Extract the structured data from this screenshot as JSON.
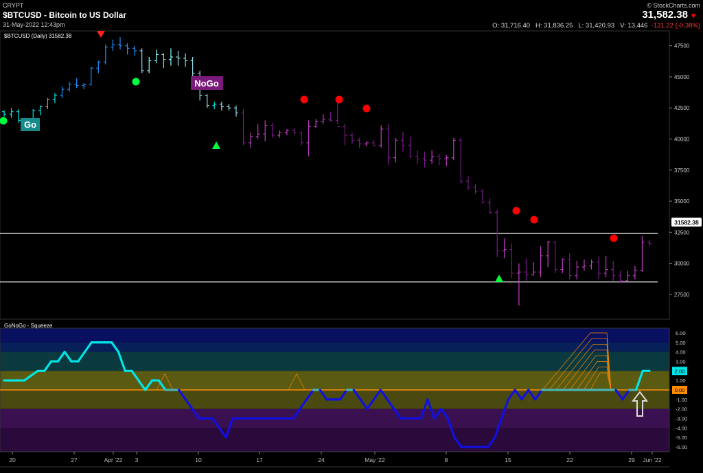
{
  "header": {
    "source": "CRYPT",
    "symbol_title": "$BTCUSD - Bitcoin to US Dollar",
    "datetime": "31-May-2022 12:43pm",
    "watermark": "© StockCharts.com",
    "last_price": "31,582.38",
    "ohlc": {
      "open": "O: 31,716.40",
      "high": "H: 31,836.25",
      "low": "L: 31,420.93",
      "volume": "V: 13,446",
      "change": "-121.22 (-0.38%)"
    }
  },
  "price_panel": {
    "legend": "$BTCUSD (Daily) 31582.38",
    "price_tag": "31582.38",
    "go_label": "Go",
    "nogo_label": "NoGo"
  },
  "osc_panel": {
    "legend": "GoNoGo - Squeeze",
    "value_tag": "2.00",
    "zero_tag": "0.00"
  },
  "colors": {
    "strong_go": "#1e90ff",
    "go": "#00e5e5",
    "nogo": "#c040c0",
    "strong_nogo": "#7a1a8a",
    "hline": "#e0e0e0",
    "red_dot": "#ff0000",
    "green": "#00ff3c"
  },
  "chart_data": [
    {
      "type": "ohlc-bar",
      "title": "$BTCUSD (Daily) 31582.38",
      "y_ticks": [
        "47500",
        "45000",
        "42500",
        "40000",
        "37500",
        "35000",
        "32500",
        "30000",
        "27500"
      ],
      "ylim": [
        25500,
        48700
      ],
      "x_ticks": [
        "20",
        "27",
        "Apr '22",
        "3",
        "10",
        "17",
        "24",
        "May '22",
        "8",
        "15",
        "22",
        "29",
        "Jun '22"
      ],
      "horizontal_lines": [
        32400,
        28500
      ],
      "series": [
        {
          "values": [
            [
              42200,
              42300,
              41800,
              42000
            ],
            [
              42000,
              42500,
              41700,
              42200
            ],
            [
              42200,
              42400,
              41300,
              41500
            ],
            [
              41500,
              41700,
              41000,
              41200
            ],
            [
              41200,
              42400,
              41100,
              42300
            ],
            [
              42300,
              42700,
              41900,
              42600
            ],
            [
              42600,
              43300,
              42400,
              43200
            ],
            [
              43200,
              43700,
              42900,
              43500
            ],
            [
              43500,
              44200,
              43300,
              44000
            ],
            [
              44000,
              44600,
              43800,
              44400
            ],
            [
              44400,
              44900,
              44100,
              44300
            ],
            [
              44300,
              44500,
              44000,
              44400
            ],
            [
              44400,
              45800,
              44300,
              45700
            ],
            [
              45700,
              46300,
              45300,
              46200
            ],
            [
              46200,
              47600,
              46000,
              47400
            ],
            [
              47400,
              48000,
              47100,
              47600
            ],
            [
              47600,
              48200,
              47200,
              47500
            ],
            [
              47500,
              47700,
              46800,
              47300
            ],
            [
              47300,
              47500,
              46700,
              47100
            ],
            [
              47100,
              47300,
              45300,
              45500
            ],
            [
              45500,
              46600,
              45300,
              46300
            ],
            [
              46300,
              47200,
              46100,
              46800
            ],
            [
              46800,
              46900,
              45700,
              46400
            ],
            [
              46400,
              47300,
              45900,
              46600
            ],
            [
              46600,
              47100,
              45900,
              46500
            ],
            [
              46500,
              46900,
              45800,
              46300
            ],
            [
              46300,
              46600,
              45000,
              45300
            ],
            [
              45300,
              45500,
              43100,
              43500
            ],
            [
              43500,
              43600,
              42500,
              42700
            ],
            [
              42700,
              43000,
              42400,
              42800
            ],
            [
              42800,
              43000,
              42300,
              42600
            ],
            [
              42600,
              42800,
              42300,
              42500
            ],
            [
              42500,
              42700,
              41800,
              42100
            ]
          ]
        },
        {
          "values": [
            [
              42100,
              42400,
              39500,
              39700
            ],
            [
              39700,
              40500,
              39300,
              40200
            ],
            [
              40200,
              41200,
              40000,
              40400
            ],
            [
              40400,
              41500,
              39800,
              41100
            ],
            [
              41100,
              41300,
              40100,
              40300
            ],
            [
              40300,
              40700,
              40100,
              40500
            ],
            [
              40500,
              40800,
              40300,
              40700
            ],
            [
              40700,
              40900,
              40400,
              40500
            ],
            [
              40500,
              40600,
              39500,
              39700
            ],
            [
              39700,
              41500,
              38600,
              41000
            ],
            [
              41000,
              41600,
              40900,
              41400
            ],
            [
              41400,
              42000,
              41200,
              41600
            ],
            [
              41600,
              42200,
              41400,
              41500
            ],
            [
              41500,
              43300,
              41200,
              41000
            ],
            [
              41000,
              41200,
              39500,
              40300
            ],
            [
              40300,
              40500,
              39600,
              39900
            ],
            [
              39900,
              40100,
              39300,
              39600
            ],
            [
              39600,
              39800,
              39400,
              39700
            ],
            [
              39700,
              39900,
              39400,
              39500
            ],
            [
              39500,
              41100,
              39300,
              40800
            ],
            [
              40800,
              41200,
              37900,
              38500
            ],
            [
              38500,
              40100,
              38100,
              39900
            ],
            [
              39900,
              40600,
              39000,
              39500
            ],
            [
              39500,
              40200,
              38500,
              38600
            ],
            [
              38600,
              39100,
              38000,
              38400
            ],
            [
              38400,
              39000,
              37700,
              38300
            ],
            [
              38300,
              39100,
              38000,
              38600
            ],
            [
              38600,
              38800,
              37900,
              38400
            ],
            [
              38400,
              38700,
              37800,
              38500
            ],
            [
              38500,
              40100,
              38300,
              39900
            ],
            [
              39900,
              40100,
              36400,
              36600
            ],
            [
              36600,
              37000,
              35900,
              36100
            ],
            [
              36100,
              36400,
              35600,
              35800
            ],
            [
              35800,
              36000,
              34800,
              34900
            ],
            [
              34900,
              35200,
              34000,
              34100
            ],
            [
              34100,
              34300,
              30500,
              31000
            ],
            [
              31000,
              32000,
              30400,
              31100
            ],
            [
              31100,
              31600,
              28800,
              29200
            ],
            [
              29200,
              30000,
              26600,
              29300
            ],
            [
              29300,
              30400,
              28600,
              29100
            ],
            [
              29100,
              30100,
              29000,
              29300
            ],
            [
              29300,
              31400,
              28900,
              30600
            ],
            [
              30600,
              31800,
              29700,
              31700
            ],
            [
              31700,
              31800,
              29200,
              29500
            ],
            [
              29500,
              30400,
              29200,
              30300
            ],
            [
              30300,
              30800,
              28700,
              29000
            ],
            [
              29000,
              30200,
              28700,
              29700
            ],
            [
              29700,
              30300,
              29400,
              29800
            ],
            [
              29800,
              30300,
              29500,
              30100
            ],
            [
              30100,
              30500,
              28700,
              29200
            ],
            [
              29200,
              30600,
              28900,
              29500
            ],
            [
              29500,
              30200,
              28600,
              29000
            ],
            [
              29000,
              29400,
              28400,
              28600
            ],
            [
              28600,
              29400,
              28500,
              29000
            ],
            [
              29000,
              29800,
              28700,
              29400
            ],
            [
              29400,
              32200,
              29300,
              31700
            ],
            [
              31700,
              31900,
              31400,
              31600
            ]
          ]
        }
      ],
      "annotations": [
        "Go",
        "NoGo"
      ]
    },
    {
      "type": "line",
      "title": "GoNoGo - Squeeze",
      "y_ticks": [
        "6.00",
        "5.00",
        "4.00",
        "3.00",
        "2.00",
        "1.00",
        "0.00",
        "-1.00",
        "-2.00",
        "-3.00",
        "-4.00",
        "-5.00",
        "-6.00"
      ],
      "ylim": [
        -6.5,
        6.5
      ],
      "x_ticks": [
        "20",
        "27",
        "Apr '22",
        "3",
        "10",
        "17",
        "24",
        "May '22",
        "8",
        "15",
        "22",
        "29",
        "Jun '22"
      ],
      "series": [
        {
          "name": "",
          "values": [
            1,
            1,
            1,
            1,
            1.5,
            2,
            2,
            3,
            3,
            4,
            3,
            3,
            4,
            5,
            5,
            5,
            5,
            4,
            2,
            2,
            1,
            0,
            1,
            1,
            0,
            0,
            0,
            -1,
            -2,
            -3,
            -3,
            -3,
            -4,
            -5,
            -3,
            -3,
            -3,
            -3,
            -3,
            -3,
            -3,
            -3,
            -3,
            -3,
            -2,
            -1,
            0,
            0,
            -1,
            -1,
            -1,
            0,
            0,
            -1,
            -2,
            -1,
            0,
            -1,
            -2,
            -3,
            -3,
            -3,
            -3,
            -1,
            -3,
            -2,
            -3,
            -5,
            -6,
            -6,
            -6,
            -6,
            -6,
            -5,
            -3,
            -1,
            0,
            -1,
            0,
            -1,
            0,
            0,
            0,
            0,
            0,
            0,
            0,
            0,
            0,
            0,
            0,
            0,
            -1,
            0,
            0,
            2,
            2
          ]
        }
      ]
    }
  ]
}
